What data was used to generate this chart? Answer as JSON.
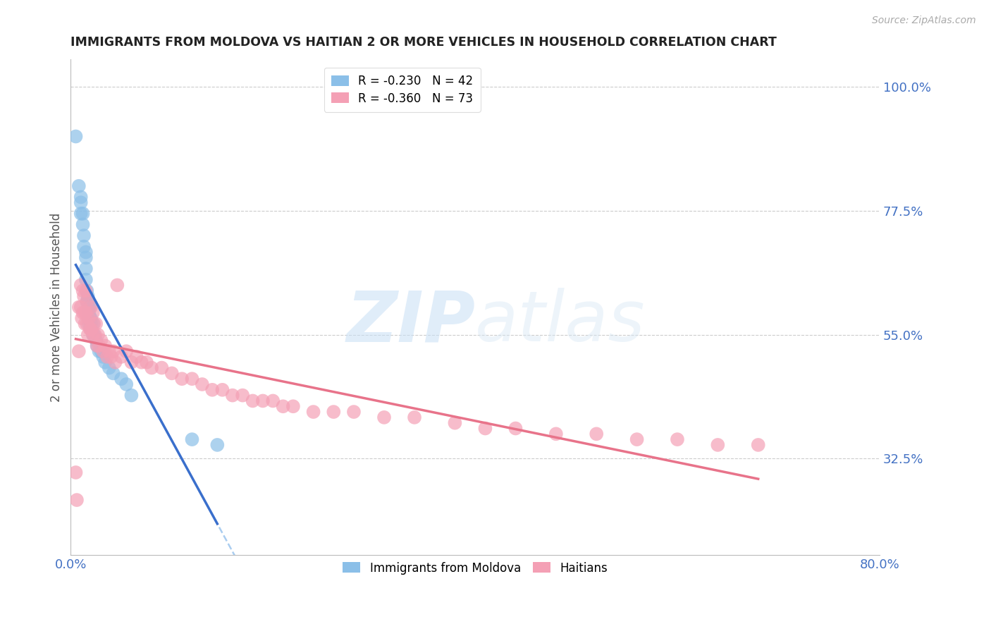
{
  "title": "IMMIGRANTS FROM MOLDOVA VS HAITIAN 2 OR MORE VEHICLES IN HOUSEHOLD CORRELATION CHART",
  "source": "Source: ZipAtlas.com",
  "ylabel": "2 or more Vehicles in Household",
  "xlim": [
    0.0,
    0.8
  ],
  "ylim": [
    0.15,
    1.05
  ],
  "xticks": [
    0.0,
    0.1,
    0.2,
    0.3,
    0.4,
    0.5,
    0.6,
    0.7,
    0.8
  ],
  "xticklabels": [
    "0.0%",
    "",
    "",
    "",
    "",
    "",
    "",
    "",
    "80.0%"
  ],
  "yticks_right": [
    1.0,
    0.775,
    0.55,
    0.325
  ],
  "yticks_right_labels": [
    "100.0%",
    "77.5%",
    "55.0%",
    "32.5%"
  ],
  "legend_entries": [
    {
      "label": "R = -0.230   N = 42",
      "color": "#8BBFE8"
    },
    {
      "label": "R = -0.360   N = 73",
      "color": "#F4A0B5"
    }
  ],
  "legend_labels_bottom": [
    "Immigrants from Moldova",
    "Haitians"
  ],
  "moldova_color": "#8BBFE8",
  "haiti_color": "#F4A0B5",
  "moldova_line_color": "#3A6FCC",
  "haiti_line_color": "#E8738A",
  "dashed_line_color": "#AACDF0",
  "watermark_zip": "ZIP",
  "watermark_atlas": "atlas",
  "moldova_x": [
    0.005,
    0.008,
    0.01,
    0.01,
    0.01,
    0.012,
    0.012,
    0.013,
    0.013,
    0.015,
    0.015,
    0.015,
    0.015,
    0.016,
    0.016,
    0.017,
    0.017,
    0.018,
    0.018,
    0.018,
    0.018,
    0.019,
    0.019,
    0.02,
    0.02,
    0.02,
    0.022,
    0.022,
    0.023,
    0.025,
    0.026,
    0.028,
    0.03,
    0.032,
    0.034,
    0.038,
    0.042,
    0.05,
    0.055,
    0.06,
    0.12,
    0.145
  ],
  "moldova_y": [
    0.91,
    0.82,
    0.8,
    0.79,
    0.77,
    0.77,
    0.75,
    0.73,
    0.71,
    0.7,
    0.69,
    0.67,
    0.65,
    0.63,
    0.61,
    0.62,
    0.61,
    0.6,
    0.59,
    0.58,
    0.57,
    0.6,
    0.58,
    0.58,
    0.57,
    0.56,
    0.57,
    0.55,
    0.55,
    0.54,
    0.53,
    0.52,
    0.52,
    0.51,
    0.5,
    0.49,
    0.48,
    0.47,
    0.46,
    0.44,
    0.36,
    0.35
  ],
  "haiti_x": [
    0.005,
    0.006,
    0.008,
    0.008,
    0.01,
    0.01,
    0.011,
    0.012,
    0.012,
    0.013,
    0.014,
    0.014,
    0.015,
    0.015,
    0.016,
    0.016,
    0.017,
    0.018,
    0.019,
    0.02,
    0.02,
    0.022,
    0.022,
    0.023,
    0.024,
    0.025,
    0.026,
    0.027,
    0.028,
    0.03,
    0.032,
    0.034,
    0.036,
    0.038,
    0.04,
    0.042,
    0.044,
    0.046,
    0.05,
    0.055,
    0.06,
    0.065,
    0.07,
    0.075,
    0.08,
    0.09,
    0.1,
    0.11,
    0.12,
    0.13,
    0.14,
    0.15,
    0.16,
    0.17,
    0.18,
    0.19,
    0.2,
    0.21,
    0.22,
    0.24,
    0.26,
    0.28,
    0.31,
    0.34,
    0.38,
    0.41,
    0.44,
    0.48,
    0.52,
    0.56,
    0.6,
    0.64,
    0.68
  ],
  "haiti_y": [
    0.3,
    0.25,
    0.6,
    0.52,
    0.64,
    0.6,
    0.58,
    0.63,
    0.59,
    0.62,
    0.59,
    0.57,
    0.63,
    0.59,
    0.61,
    0.57,
    0.55,
    0.58,
    0.56,
    0.6,
    0.56,
    0.59,
    0.55,
    0.57,
    0.55,
    0.57,
    0.53,
    0.55,
    0.53,
    0.54,
    0.52,
    0.53,
    0.51,
    0.52,
    0.51,
    0.52,
    0.5,
    0.64,
    0.51,
    0.52,
    0.5,
    0.51,
    0.5,
    0.5,
    0.49,
    0.49,
    0.48,
    0.47,
    0.47,
    0.46,
    0.45,
    0.45,
    0.44,
    0.44,
    0.43,
    0.43,
    0.43,
    0.42,
    0.42,
    0.41,
    0.41,
    0.41,
    0.4,
    0.4,
    0.39,
    0.38,
    0.38,
    0.37,
    0.37,
    0.36,
    0.36,
    0.35,
    0.35
  ]
}
